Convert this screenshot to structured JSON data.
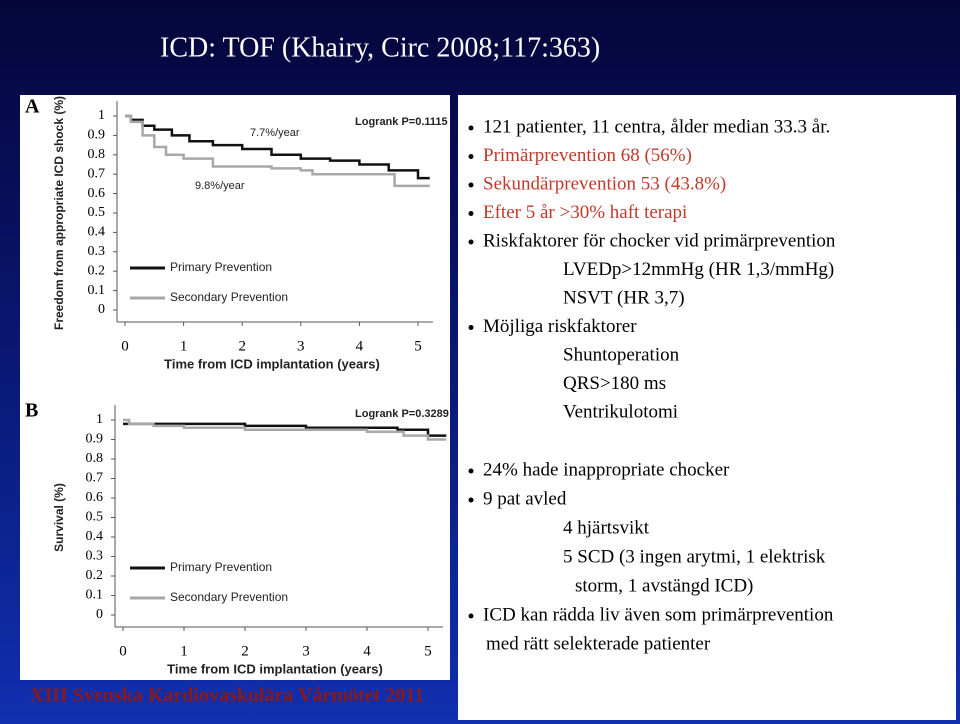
{
  "header": {
    "title": "ICD: TOF (Khairy, Circ 2008;117:363)"
  },
  "figure": {
    "panels": [
      {
        "label": "A",
        "ylabel": "Freedom from appropriate ICD shock (%)",
        "xlabel": "Time from ICD implantation (years)",
        "xlim": [
          0,
          5.3
        ],
        "ylim": [
          0,
          1
        ],
        "xticks": [
          0,
          1,
          2,
          3,
          4,
          5
        ],
        "yticks": [
          0,
          0.1,
          0.2,
          0.3,
          0.4,
          0.5,
          0.6,
          0.7,
          0.8,
          0.9,
          1
        ],
        "annotations": [
          "Logrank P=0.1115",
          "7.7%/year",
          "9.8%/year"
        ],
        "series": [
          {
            "name": "Primary Prevention",
            "color": "#111111",
            "x": [
              0,
              0.1,
              0.3,
              0.5,
              0.8,
              1.1,
              1.5,
              2.0,
              2.5,
              3.0,
              3.5,
              4.0,
              4.5,
              5.0,
              5.2
            ],
            "values": [
              1,
              0.98,
              0.95,
              0.93,
              0.9,
              0.87,
              0.85,
              0.83,
              0.8,
              0.78,
              0.77,
              0.75,
              0.72,
              0.68,
              0.68
            ]
          },
          {
            "name": "Secondary Prevention",
            "color": "#a8a8a8",
            "x": [
              0,
              0.1,
              0.3,
              0.5,
              0.7,
              1.0,
              1.5,
              2.0,
              2.5,
              3.0,
              3.2,
              3.5,
              4.0,
              4.6,
              5.2
            ],
            "values": [
              1,
              0.97,
              0.9,
              0.84,
              0.8,
              0.78,
              0.74,
              0.74,
              0.73,
              0.72,
              0.7,
              0.7,
              0.7,
              0.64,
              0.64
            ]
          }
        ]
      },
      {
        "label": "B",
        "ylabel": "Survival (%)",
        "xlabel": "Time from ICD implantation (years)",
        "xlim": [
          0,
          5.3
        ],
        "ylim": [
          0,
          1
        ],
        "xticks": [
          0,
          1,
          2,
          3,
          4,
          5
        ],
        "yticks": [
          0,
          0.1,
          0.2,
          0.3,
          0.4,
          0.5,
          0.6,
          0.7,
          0.8,
          0.9,
          1
        ],
        "annotations": [
          "Logrank P=0.3289"
        ],
        "series": [
          {
            "name": "Primary Prevention",
            "color": "#111111",
            "x": [
              0,
              0.3,
              1.0,
              2.0,
              3.0,
              4.0,
              4.5,
              5.0,
              5.3
            ],
            "values": [
              0.98,
              0.98,
              0.98,
              0.97,
              0.96,
              0.96,
              0.95,
              0.92,
              0.92
            ]
          },
          {
            "name": "Secondary Prevention",
            "color": "#a8a8a8",
            "x": [
              0,
              0.1,
              0.5,
              1.0,
              1.5,
              2.0,
              3.0,
              4.0,
              4.6,
              5.0,
              5.3
            ],
            "values": [
              1,
              0.98,
              0.97,
              0.96,
              0.96,
              0.95,
              0.95,
              0.94,
              0.92,
              0.9,
              0.9
            ]
          }
        ]
      }
    ]
  },
  "text": {
    "lines": [
      {
        "text": "121 patienter, 11 centra, ålder median 33.3 år.",
        "kind": "bullet",
        "color": "#000000"
      },
      {
        "text": "Primärprevention 68 (56%)",
        "kind": "bullet",
        "color": "#c0392b"
      },
      {
        "text": "Sekundärprevention 53 (43.8%)",
        "kind": "bullet",
        "color": "#c0392b"
      },
      {
        "text": "Efter 5 år >30% haft terapi",
        "kind": "bullet",
        "color": "#c0392b"
      },
      {
        "text": "Riskfaktorer för chocker vid primärprevention",
        "kind": "bullet",
        "color": "#000000"
      },
      {
        "text": "LVEDp>12mmHg (HR 1,3/mmHg)",
        "kind": "sub",
        "color": "#000000"
      },
      {
        "text": "NSVT (HR 3,7)",
        "kind": "sub",
        "color": "#000000"
      },
      {
        "text": "Möjliga riskfaktorer",
        "kind": "bullet",
        "color": "#000000"
      },
      {
        "text": "Shuntoperation",
        "kind": "sub",
        "color": "#000000"
      },
      {
        "text": "QRS>180 ms",
        "kind": "sub",
        "color": "#000000"
      },
      {
        "text": "Ventrikulotomi",
        "kind": "sub",
        "color": "#000000"
      },
      {
        "text": "24% hade inappropriate chocker",
        "kind": "bullet",
        "color": "#000000"
      },
      {
        "text": "9 pat avled",
        "kind": "bullet",
        "color": "#000000"
      },
      {
        "text": "4 hjärtsvikt",
        "kind": "sub",
        "color": "#000000"
      },
      {
        "text": "5 SCD (3 ingen arytmi, 1 elektrisk",
        "kind": "sub",
        "color": "#000000"
      },
      {
        "text": "storm, 1 avstängd ICD)",
        "kind": "subcont",
        "color": "#000000"
      },
      {
        "text": "ICD kan rädda liv även som primärprevention",
        "kind": "bullet",
        "color": "#000000"
      },
      {
        "text": "med rätt selekterade patienter",
        "kind": "cont",
        "color": "#000000"
      }
    ]
  },
  "footer": {
    "text": "XIII Svenska Kardiovaskulära Vårmötet 2011"
  }
}
